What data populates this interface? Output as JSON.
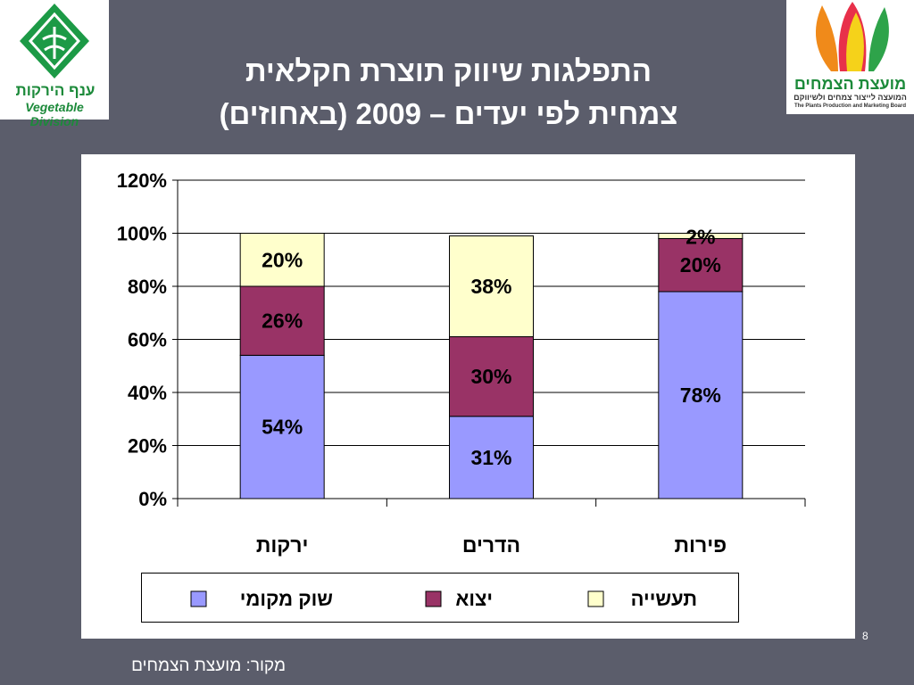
{
  "logos": {
    "left": {
      "name_he": "ענף הירקות",
      "name_en": "Vegetable Division"
    },
    "right": {
      "name_he": "מועצת הצמחים",
      "sub_he": "המועצה לייצור צמחים ולשיווקם",
      "sub_en": "The Plants Production and Marketing Board"
    }
  },
  "slide": {
    "title_line1": "התפלגות שיווק תוצרת חקלאית",
    "title_line2": "צמחית לפי יעדים – 2009 (באחוזים)",
    "page_number": "8",
    "source": "מקור: מועצת הצמחים"
  },
  "colors": {
    "background": "#5b5d6b",
    "local_market": "#9999ff",
    "export": "#993366",
    "industry": "#ffffcc"
  },
  "chart_data": {
    "type": "bar",
    "stacked": true,
    "categories": [
      "ירקות",
      "הדרים",
      "פירות"
    ],
    "series": [
      {
        "name": "שוק מקומי",
        "values": [
          54,
          31,
          78
        ],
        "color": "#9999ff"
      },
      {
        "name": "יצוא",
        "values": [
          26,
          30,
          20
        ],
        "color": "#993366"
      },
      {
        "name": "תעשייה",
        "values": [
          20,
          38,
          2
        ],
        "color": "#ffffcc"
      }
    ],
    "y_ticks": [
      "0%",
      "20%",
      "40%",
      "60%",
      "80%",
      "100%",
      "120%"
    ],
    "ylim": [
      0,
      120
    ],
    "grid": true,
    "legend_position": "bottom"
  }
}
